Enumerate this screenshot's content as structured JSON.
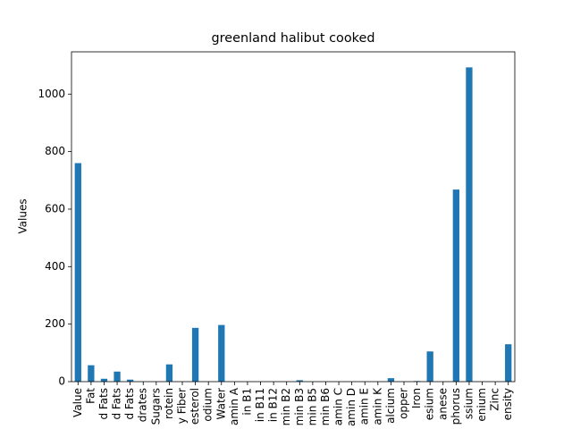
{
  "chart_data": {
    "type": "bar",
    "title": "greenland halibut cooked",
    "y_label": "Values",
    "categories": [
      "Value",
      "Fat",
      "d Fats",
      "d Fats",
      "d Fats",
      "drates",
      "Sugars",
      "rotein",
      "y Fiber",
      "esterol",
      "odium",
      "Water",
      "amin A",
      "in B1",
      "in B11",
      "in B12",
      "min B2",
      "min B3",
      "min B5",
      "min B6",
      "amin C",
      "amin D",
      "amin E",
      "amin K",
      "alcium",
      "opper",
      "Iron",
      "esium",
      "anese",
      "phorus",
      "ssium",
      "enium",
      "Zinc",
      "ensity"
    ],
    "values": [
      760,
      57,
      10,
      35,
      7,
      0,
      0,
      60,
      0,
      187,
      0,
      197,
      0,
      0,
      0,
      0,
      0,
      5,
      0,
      0,
      0,
      0,
      0,
      0,
      12,
      0,
      2,
      105,
      0,
      668,
      1093,
      0,
      0,
      130
    ],
    "color": "#1f77b4",
    "ylim": [
      0,
      1147
    ],
    "yticks": [
      0,
      200,
      400,
      600,
      800,
      1000
    ]
  }
}
